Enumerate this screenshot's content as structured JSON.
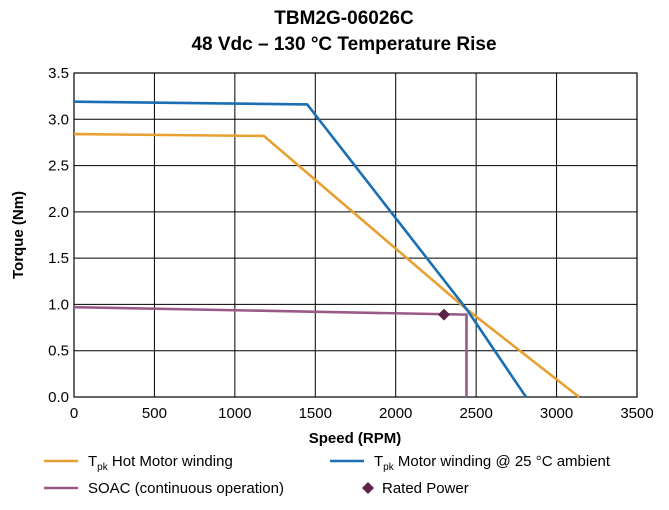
{
  "chart_data": {
    "type": "line",
    "title": "TBM2G-06026C",
    "subtitle": "48 Vdc – 130 °C Temperature Rise",
    "xlabel": "Speed (RPM)",
    "ylabel": "Torque (Nm)",
    "xlim": [
      0,
      3500
    ],
    "ylim": [
      0,
      3.5
    ],
    "x_ticks": [
      0,
      500,
      1000,
      1500,
      2000,
      2500,
      3000,
      3500
    ],
    "y_ticks": [
      0.0,
      0.5,
      1.0,
      1.5,
      2.0,
      2.5,
      3.0,
      3.5
    ],
    "x_tick_labels": [
      "0",
      "500",
      "1000",
      "1500",
      "2000",
      "2500",
      "3000",
      "3500"
    ],
    "y_tick_labels": [
      "0.0",
      "0.5",
      "1.0",
      "1.5",
      "2.0",
      "2.5",
      "3.0",
      "3.5"
    ],
    "grid": true,
    "legend_position": "bottom",
    "series": [
      {
        "name_main": "T",
        "name_sub": "pk",
        "name_rest": " Hot Motor winding",
        "color": "#e8a030",
        "marker": "line",
        "points": [
          [
            0,
            2.84
          ],
          [
            1180,
            2.82
          ],
          [
            2440,
            0.95
          ],
          [
            3140,
            0.0
          ]
        ]
      },
      {
        "name_main": "T",
        "name_sub": "pk",
        "name_rest": " Motor winding @ 25 °C ambient",
        "color": "#1a6fb4",
        "marker": "line",
        "points": [
          [
            0,
            3.19
          ],
          [
            1450,
            3.16
          ],
          [
            2440,
            0.95
          ],
          [
            2810,
            0.0
          ]
        ]
      },
      {
        "name_main": "SOAC (continuous operation)",
        "name_sub": "",
        "name_rest": "",
        "color": "#9a5a88",
        "marker": "line",
        "points": [
          [
            0,
            0.97
          ],
          [
            2440,
            0.89
          ],
          [
            2440,
            0.0
          ]
        ]
      },
      {
        "name_main": "Rated Power",
        "name_sub": "",
        "name_rest": "",
        "color": "#5c2346",
        "marker": "diamond",
        "points": [
          [
            2300,
            0.89
          ]
        ]
      }
    ]
  }
}
